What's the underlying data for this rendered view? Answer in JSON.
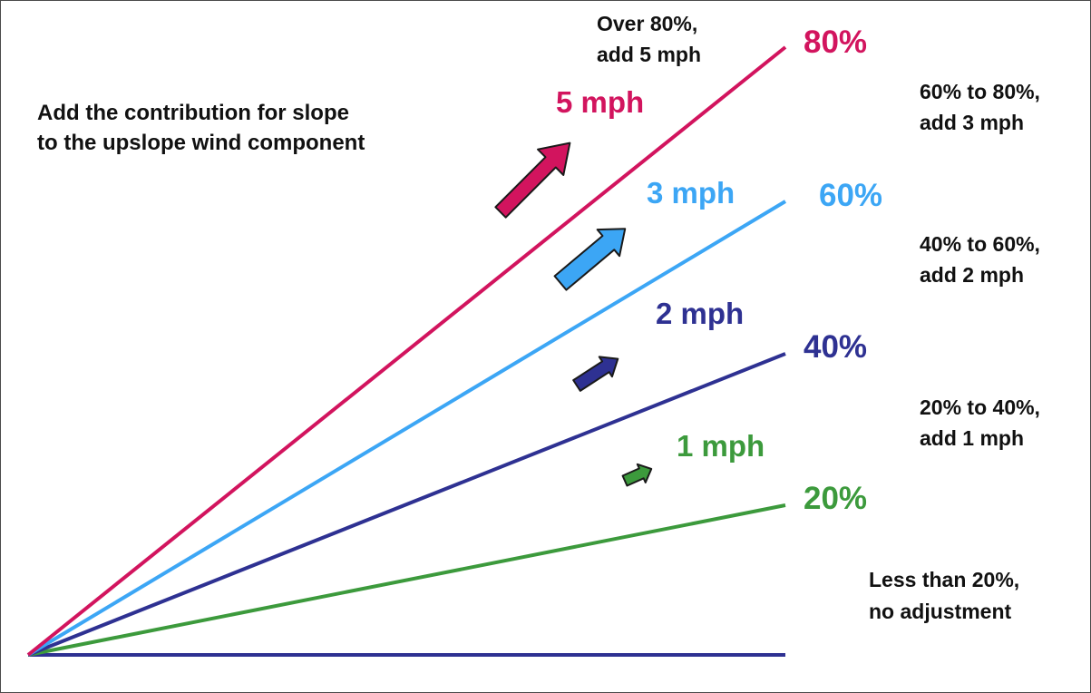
{
  "title": {
    "line1": "Add the contribution for slope",
    "line2": "to the upslope wind component"
  },
  "colors": {
    "p80": "#d2145e",
    "p60": "#3ca6f5",
    "p40": "#2e3192",
    "p20": "#3c9a3c",
    "base": "#2e3192"
  },
  "lines": [
    {
      "id": "p80",
      "pct_label": "80%",
      "mph_label": "5 mph",
      "color": "#d2145e"
    },
    {
      "id": "p60",
      "pct_label": "60%",
      "mph_label": "3 mph",
      "color": "#3ca6f5"
    },
    {
      "id": "p40",
      "pct_label": "40%",
      "mph_label": "2 mph",
      "color": "#2e3192"
    },
    {
      "id": "p20",
      "pct_label": "20%",
      "mph_label": "1 mph",
      "color": "#3c9a3c"
    }
  ],
  "notes": {
    "over80": {
      "line1": "Over 80%,",
      "line2": "add 5 mph"
    },
    "r60_80": {
      "line1": "60% to 80%,",
      "line2": "add 3 mph"
    },
    "r40_60": {
      "line1": "40% to 60%,",
      "line2": "add 2 mph"
    },
    "r20_40": {
      "line1": "20% to 40%,",
      "line2": "add 1 mph"
    },
    "under20": {
      "line1": "Less than 20%,",
      "line2": "no adjustment"
    }
  }
}
